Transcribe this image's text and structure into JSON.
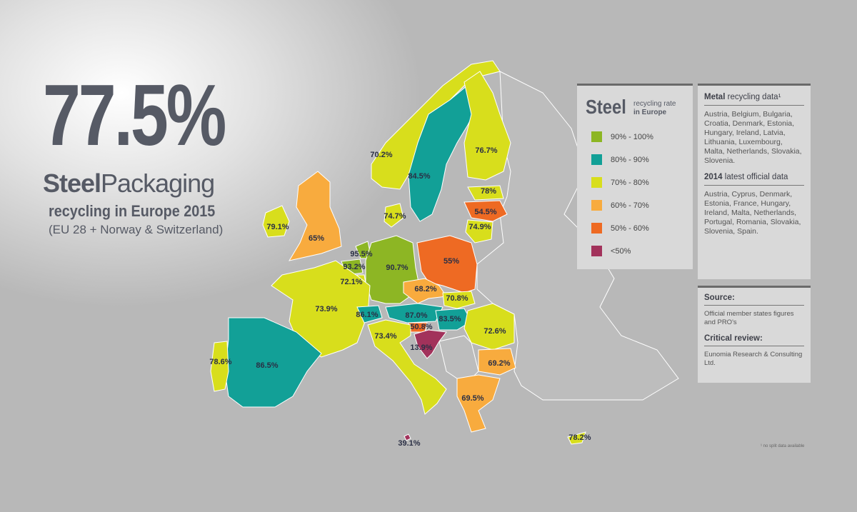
{
  "headline": {
    "value": "77.5%",
    "title_bold": "Steel",
    "title_light": "Packaging",
    "subtitle": "recycling in Europe 2015",
    "note": "(EU 28 + Norway & Switzerland)"
  },
  "legend": {
    "title": "Steel",
    "caption_top": "recycling rate",
    "caption_bottom": "in Europe",
    "items": [
      {
        "label": "90% - 100%",
        "color": "#8db624"
      },
      {
        "label": "80% - 90%",
        "color": "#12a097"
      },
      {
        "label": "70% - 80%",
        "color": "#d8de1c"
      },
      {
        "label": "60% - 70%",
        "color": "#f8ab3e"
      },
      {
        "label": "50% - 60%",
        "color": "#ee6a23"
      },
      {
        "label": "<50%",
        "color": "#a2325b"
      }
    ]
  },
  "countries": [
    {
      "label": "70.2%",
      "color": "#d8de1c"
    },
    {
      "label": "84.5%",
      "color": "#12a097"
    },
    {
      "label": "76.7%",
      "color": "#d8de1c"
    },
    {
      "label": "78%",
      "color": "#d8de1c"
    },
    {
      "label": "54.5%",
      "color": "#ee6a23"
    },
    {
      "label": "74.9%",
      "color": "#d8de1c"
    },
    {
      "label": "74.7%",
      "color": "#d8de1c"
    },
    {
      "label": "79.1%",
      "color": "#d8de1c"
    },
    {
      "label": "65%",
      "color": "#f8ab3e"
    },
    {
      "label": "95.5%",
      "color": "#8db624"
    },
    {
      "label": "93.2%",
      "color": "#8db624"
    },
    {
      "label": "72.1%",
      "color": "#d8de1c"
    },
    {
      "label": "90.7%",
      "color": "#8db624"
    },
    {
      "label": "55%",
      "color": "#ee6a23"
    },
    {
      "label": "68.2%",
      "color": "#f8ab3e"
    },
    {
      "label": "70.8%",
      "color": "#d8de1c"
    },
    {
      "label": "73.9%",
      "color": "#d8de1c"
    },
    {
      "label": "86.1%",
      "color": "#12a097"
    },
    {
      "label": "87.0%",
      "color": "#12a097"
    },
    {
      "label": "83.5%",
      "color": "#12a097"
    },
    {
      "label": "50.8%",
      "color": "#ee6a23"
    },
    {
      "label": "13.9%",
      "color": "#a2325b"
    },
    {
      "label": "73.4%",
      "color": "#d8de1c"
    },
    {
      "label": "72.6%",
      "color": "#d8de1c"
    },
    {
      "label": "69.2%",
      "color": "#f8ab3e"
    },
    {
      "label": "69.5%",
      "color": "#f8ab3e"
    },
    {
      "label": "86.5%",
      "color": "#12a097"
    },
    {
      "label": "78.6%",
      "color": "#d8de1c"
    },
    {
      "label": "39.1%",
      "color": "#a2325b"
    },
    {
      "label": "78.2%",
      "color": "#d8de1c"
    }
  ],
  "panel": {
    "metal_bold": "Metal",
    "metal_title": "recycling data¹",
    "metal_body": "Austria, Belgium, Bulgaria, Croatia, Denmark, Estonia, Hungary, Ireland, Latvia, Lithuania, Luxembourg, Malta, Netherlands, Slovakia, Slovenia.",
    "latest_bold": "2014",
    "latest_title": "latest official data",
    "latest_body": "Austria, Cyprus, Denmark, Estonia, France, Hungary, Ireland, Malta, Netherlands, Portugal, Romania, Slovakia, Slovenia, Spain.",
    "source_title": "Source:",
    "source_body": "Official member states figures and PRO's",
    "review_title": "Critical review:",
    "review_body": "Eunomia Research & Consulting Ltd."
  },
  "footnote": "¹ no split data available"
}
